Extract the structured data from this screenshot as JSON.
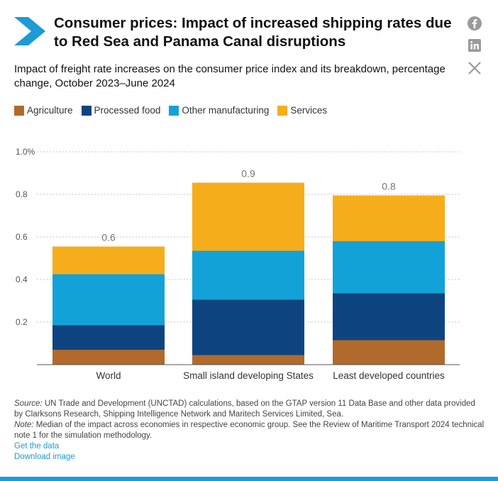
{
  "header": {
    "title": "Consumer prices: Impact of increased shipping rates due to Red Sea and Panama Canal disruptions",
    "subtitle": "Impact of freight rate increases on the consumer price index and its breakdown, percentage change, October 2023–June 2024"
  },
  "social": [
    "facebook-icon",
    "linkedin-icon",
    "x-icon"
  ],
  "colors": {
    "accent": "#1e9ad6",
    "agriculture": "#b06a2c",
    "processed_food": "#0d4480",
    "other_manufacturing": "#13a2d8",
    "services": "#f6ad1c"
  },
  "legend": [
    "Agriculture",
    "Processed food",
    "Other manufacturing",
    "Services"
  ],
  "chart_data": {
    "type": "bar",
    "stacked": true,
    "title": "",
    "xlabel": "",
    "ylabel": "",
    "ylim": [
      0,
      1.0
    ],
    "yticks": [
      "0.2",
      "0.4",
      "0.6",
      "0.8",
      "1.0%"
    ],
    "categories": [
      "World",
      "Small island developing States",
      "Least developed countries"
    ],
    "series": [
      {
        "name": "Agriculture",
        "values": [
          0.07,
          0.045,
          0.115
        ]
      },
      {
        "name": "Processed food",
        "values": [
          0.115,
          0.26,
          0.22
        ]
      },
      {
        "name": "Other manufacturing",
        "values": [
          0.24,
          0.23,
          0.245
        ]
      },
      {
        "name": "Services",
        "values": [
          0.13,
          0.32,
          0.215
        ]
      }
    ],
    "totals": [
      "0.6",
      "0.9",
      "0.8"
    ]
  },
  "footer": {
    "source_label": "Source:",
    "source_text": "UN Trade and Development (UNCTAD) calculations, based on the GTAP version 11 Data Base and other data provided by Clarksons Research, Shipping Intelligence Network and Maritech Services Limited, Sea.",
    "note_label": "Note:",
    "note_text": "Median of the impact across economies in respective economic group. See the Review of Maritime Transport 2024 technical note 1 for the simulation methodology.",
    "get_data": "Get the data",
    "download_image": "Download image"
  }
}
